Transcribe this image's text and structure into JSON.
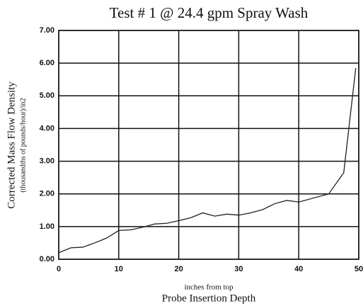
{
  "chart_data": {
    "type": "line",
    "title": "Test # 1 @ 24.4 gpm Spray Wash",
    "x_label_small": "inches from top",
    "x_label": "Probe Insertion Depth",
    "y_label": "Corrected Mass Flow Density",
    "y_label_small": "(thousandths of pounds/hour)/in2",
    "x": [
      0,
      2,
      4,
      6,
      8,
      10,
      12,
      14,
      16,
      18,
      20,
      22,
      24,
      26,
      28,
      30,
      32,
      34,
      36,
      38,
      40,
      45,
      47.5,
      49.5
    ],
    "series": [
      {
        "name": "Test # 1",
        "color": "#222222",
        "values": [
          0.2,
          0.35,
          0.37,
          0.5,
          0.65,
          0.88,
          0.9,
          0.98,
          1.08,
          1.1,
          1.18,
          1.27,
          1.42,
          1.32,
          1.38,
          1.35,
          1.42,
          1.52,
          1.7,
          1.8,
          1.75,
          2.0,
          2.65,
          5.85
        ]
      }
    ],
    "xlim": [
      0,
      50
    ],
    "xticks": [
      0,
      10,
      20,
      30,
      40,
      50
    ],
    "ylim": [
      0,
      7
    ],
    "yticks": [
      {
        "value": 0,
        "label": "0.00"
      },
      {
        "value": 1,
        "label": "1.00"
      },
      {
        "value": 2,
        "label": "2.00"
      },
      {
        "value": 3,
        "label": "3.00"
      },
      {
        "value": 4,
        "label": "4.00"
      },
      {
        "value": 5,
        "label": "5.00"
      },
      {
        "value": 6,
        "label": "6.00"
      },
      {
        "value": 7,
        "label": "7.00"
      }
    ],
    "grid": true
  }
}
